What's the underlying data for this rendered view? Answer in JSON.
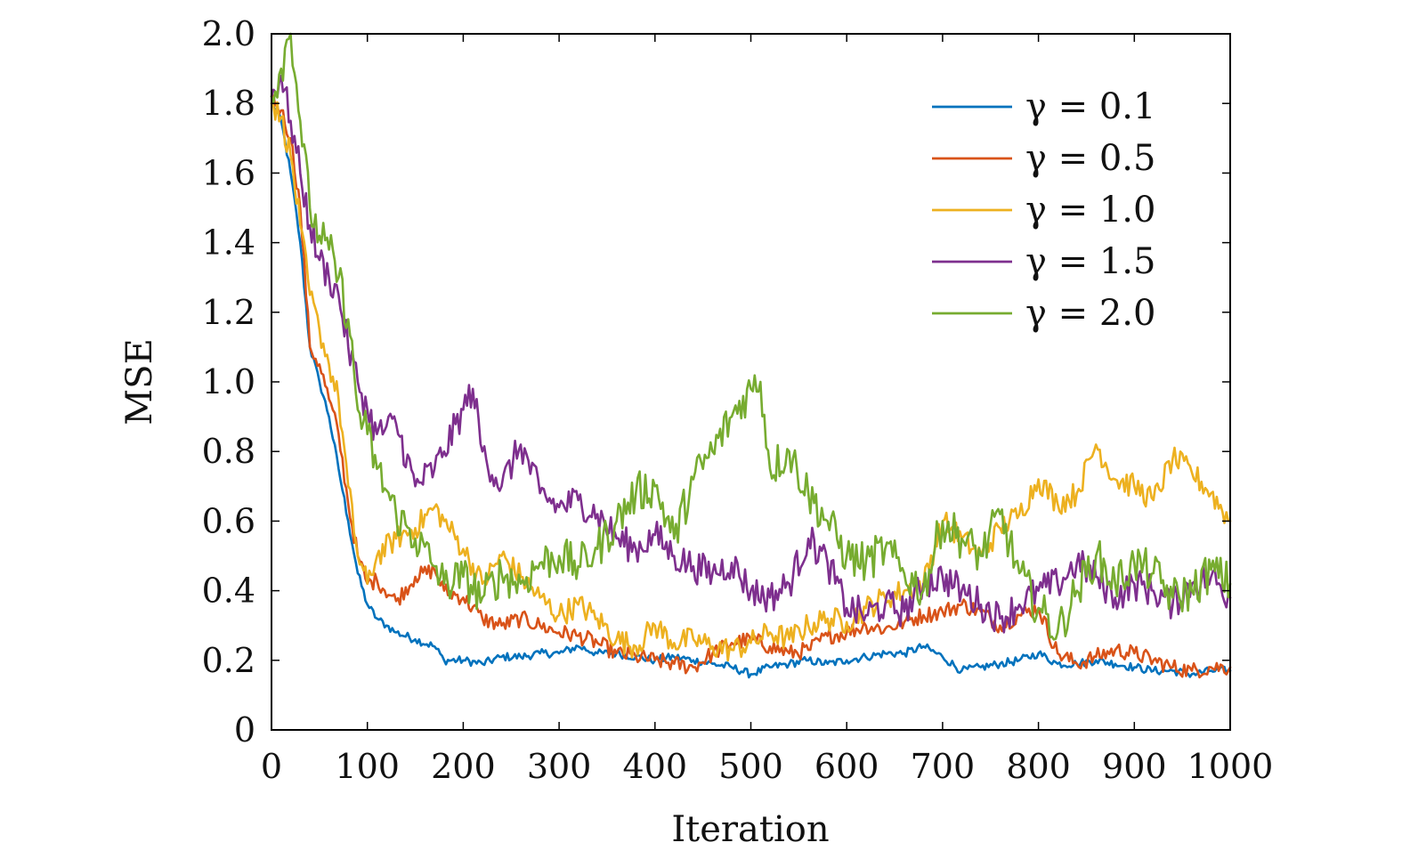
{
  "chart_data": {
    "type": "line",
    "title": "",
    "xlabel": "Iteration",
    "ylabel": "MSE",
    "xlim": [
      0,
      1000
    ],
    "ylim": [
      0,
      2.0
    ],
    "xticks": [
      0,
      100,
      200,
      300,
      400,
      500,
      600,
      700,
      800,
      900,
      1000
    ],
    "xtick_labels": [
      "0",
      "100",
      "200",
      "300",
      "400",
      "500",
      "600",
      "700",
      "800",
      "900",
      "1000"
    ],
    "yticks": [
      0,
      0.2,
      0.4,
      0.6,
      0.8,
      1.0,
      1.2,
      1.4,
      1.6,
      1.8,
      2.0
    ],
    "ytick_labels": [
      "0",
      "0.2",
      "0.4",
      "0.6",
      "0.8",
      "1.0",
      "1.2",
      "1.4",
      "1.6",
      "1.8",
      "2.0"
    ],
    "grid": false,
    "legend_position": "top-right",
    "series": [
      {
        "name": "γ = 0.1",
        "color": "#0072BD",
        "x": [
          0,
          10,
          20,
          30,
          40,
          50,
          60,
          70,
          80,
          90,
          100,
          110,
          120,
          130,
          150,
          170,
          180,
          200,
          220,
          240,
          260,
          280,
          300,
          320,
          340,
          360,
          380,
          400,
          420,
          440,
          460,
          480,
          500,
          520,
          540,
          560,
          580,
          600,
          620,
          640,
          660,
          680,
          700,
          720,
          740,
          760,
          780,
          800,
          820,
          840,
          860,
          880,
          900,
          920,
          940,
          960,
          980,
          1000
        ],
        "values": [
          1.8,
          1.75,
          1.6,
          1.4,
          1.1,
          1.0,
          0.9,
          0.75,
          0.6,
          0.45,
          0.36,
          0.32,
          0.3,
          0.28,
          0.26,
          0.24,
          0.2,
          0.2,
          0.19,
          0.21,
          0.21,
          0.22,
          0.22,
          0.24,
          0.22,
          0.22,
          0.21,
          0.2,
          0.21,
          0.2,
          0.19,
          0.18,
          0.16,
          0.18,
          0.19,
          0.2,
          0.19,
          0.2,
          0.21,
          0.22,
          0.22,
          0.24,
          0.21,
          0.17,
          0.18,
          0.19,
          0.2,
          0.22,
          0.19,
          0.19,
          0.2,
          0.19,
          0.18,
          0.17,
          0.17,
          0.16,
          0.17,
          0.17
        ]
      },
      {
        "name": "γ = 0.5",
        "color": "#D95319",
        "x": [
          0,
          10,
          20,
          30,
          40,
          50,
          60,
          70,
          80,
          90,
          100,
          110,
          130,
          150,
          170,
          180,
          200,
          220,
          240,
          260,
          280,
          300,
          320,
          340,
          360,
          380,
          400,
          420,
          440,
          460,
          480,
          500,
          520,
          540,
          560,
          580,
          600,
          620,
          640,
          660,
          680,
          700,
          720,
          740,
          760,
          780,
          800,
          820,
          840,
          860,
          880,
          900,
          920,
          940,
          960,
          980,
          1000
        ],
        "values": [
          1.82,
          1.78,
          1.7,
          1.5,
          1.1,
          1.05,
          0.95,
          0.85,
          0.65,
          0.5,
          0.42,
          0.43,
          0.37,
          0.44,
          0.46,
          0.4,
          0.38,
          0.32,
          0.3,
          0.32,
          0.3,
          0.28,
          0.27,
          0.25,
          0.22,
          0.21,
          0.2,
          0.19,
          0.18,
          0.22,
          0.25,
          0.26,
          0.24,
          0.22,
          0.23,
          0.27,
          0.28,
          0.3,
          0.29,
          0.31,
          0.33,
          0.34,
          0.36,
          0.34,
          0.3,
          0.33,
          0.35,
          0.22,
          0.19,
          0.21,
          0.23,
          0.22,
          0.2,
          0.18,
          0.17,
          0.18,
          0.18
        ]
      },
      {
        "name": "γ = 1.0",
        "color": "#EDB120",
        "x": [
          0,
          10,
          20,
          30,
          40,
          50,
          60,
          70,
          80,
          90,
          100,
          110,
          130,
          150,
          170,
          180,
          200,
          220,
          240,
          260,
          280,
          300,
          320,
          340,
          360,
          380,
          400,
          420,
          440,
          460,
          480,
          500,
          520,
          540,
          560,
          580,
          600,
          620,
          640,
          660,
          680,
          700,
          720,
          740,
          760,
          780,
          800,
          820,
          840,
          860,
          880,
          900,
          920,
          940,
          960,
          980,
          1000
        ],
        "values": [
          1.8,
          1.76,
          1.65,
          1.45,
          1.25,
          1.15,
          1.05,
          0.95,
          0.7,
          0.5,
          0.42,
          0.5,
          0.55,
          0.58,
          0.64,
          0.6,
          0.52,
          0.42,
          0.5,
          0.44,
          0.38,
          0.33,
          0.36,
          0.32,
          0.26,
          0.24,
          0.3,
          0.25,
          0.26,
          0.24,
          0.23,
          0.25,
          0.28,
          0.26,
          0.3,
          0.32,
          0.31,
          0.35,
          0.38,
          0.4,
          0.42,
          0.6,
          0.55,
          0.5,
          0.58,
          0.62,
          0.72,
          0.65,
          0.68,
          0.82,
          0.72,
          0.7,
          0.66,
          0.78,
          0.74,
          0.68,
          0.6
        ]
      },
      {
        "name": "γ = 1.5",
        "color": "#7E2F8E",
        "x": [
          0,
          10,
          20,
          30,
          40,
          50,
          60,
          70,
          80,
          90,
          100,
          110,
          130,
          150,
          170,
          180,
          200,
          210,
          220,
          240,
          260,
          280,
          300,
          320,
          340,
          360,
          380,
          400,
          420,
          440,
          460,
          480,
          500,
          520,
          540,
          560,
          580,
          600,
          620,
          640,
          660,
          680,
          700,
          720,
          740,
          760,
          780,
          800,
          820,
          840,
          860,
          880,
          900,
          920,
          940,
          960,
          980,
          1000
        ],
        "values": [
          1.82,
          1.88,
          1.75,
          1.6,
          1.45,
          1.35,
          1.3,
          1.25,
          1.1,
          1.0,
          0.92,
          0.85,
          0.88,
          0.7,
          0.75,
          0.8,
          0.92,
          0.98,
          0.8,
          0.7,
          0.82,
          0.68,
          0.64,
          0.66,
          0.62,
          0.55,
          0.52,
          0.56,
          0.5,
          0.47,
          0.45,
          0.48,
          0.4,
          0.38,
          0.42,
          0.55,
          0.48,
          0.35,
          0.33,
          0.36,
          0.34,
          0.42,
          0.44,
          0.4,
          0.36,
          0.32,
          0.36,
          0.4,
          0.42,
          0.48,
          0.44,
          0.38,
          0.42,
          0.4,
          0.36,
          0.42,
          0.44,
          0.38
        ]
      },
      {
        "name": "γ = 2.0",
        "color": "#77AC30",
        "x": [
          0,
          10,
          20,
          30,
          40,
          50,
          60,
          70,
          80,
          90,
          100,
          110,
          130,
          150,
          170,
          180,
          200,
          220,
          240,
          260,
          280,
          300,
          320,
          340,
          360,
          380,
          400,
          420,
          440,
          460,
          480,
          500,
          510,
          520,
          540,
          560,
          580,
          600,
          620,
          640,
          660,
          680,
          700,
          720,
          740,
          760,
          780,
          800,
          820,
          840,
          860,
          880,
          900,
          920,
          940,
          960,
          980,
          1000
        ],
        "values": [
          1.82,
          1.9,
          2.02,
          1.75,
          1.5,
          1.42,
          1.38,
          1.3,
          1.18,
          0.92,
          0.85,
          0.75,
          0.62,
          0.55,
          0.47,
          0.42,
          0.44,
          0.38,
          0.45,
          0.42,
          0.48,
          0.5,
          0.47,
          0.52,
          0.6,
          0.68,
          0.7,
          0.55,
          0.72,
          0.8,
          0.9,
          0.98,
          1.0,
          0.75,
          0.8,
          0.68,
          0.6,
          0.5,
          0.48,
          0.52,
          0.45,
          0.4,
          0.6,
          0.55,
          0.5,
          0.62,
          0.45,
          0.35,
          0.28,
          0.4,
          0.5,
          0.42,
          0.48,
          0.45,
          0.38,
          0.4,
          0.46,
          0.42
        ]
      }
    ]
  }
}
